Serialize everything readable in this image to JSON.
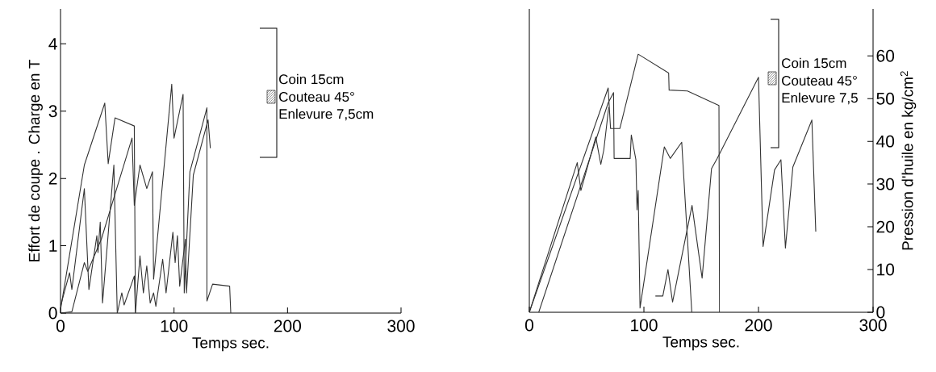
{
  "chart_data": [
    {
      "type": "line",
      "xlabel": "Temps sec.",
      "ylabel": "Effort de coupe . Charge en T",
      "xlim": [
        0,
        300
      ],
      "ylim": [
        0,
        4.52
      ],
      "xticks": [
        0,
        100,
        200,
        300
      ],
      "yticks": [
        0,
        1,
        2,
        3,
        4
      ],
      "annotations": [
        "Coin 15cm",
        "Couteau 45°",
        "Enlevure 7,5cm"
      ],
      "series": [
        {
          "color": "#333333",
          "x": [
            0,
            21,
            39,
            42,
            48,
            65,
            66
          ],
          "values": [
            0.05,
            2.2,
            3.12,
            2.22,
            2.9,
            2.78,
            0
          ]
        },
        {
          "color": "#333333",
          "x": [
            0,
            8,
            10,
            21,
            25,
            32,
            33,
            35,
            37,
            47,
            50
          ],
          "values": [
            0.1,
            0.6,
            0.35,
            1.85,
            0.35,
            1.15,
            0.9,
            1.35,
            0.15,
            2.2,
            0
          ]
        },
        {
          "color": "#333333",
          "x": [
            0,
            10,
            21,
            24,
            36,
            63,
            65,
            70,
            76,
            81,
            82
          ],
          "values": [
            0,
            0.02,
            0.75,
            0.62,
            1.1,
            2.6,
            1.6,
            2.2,
            1.85,
            2.1,
            0.5
          ]
        },
        {
          "color": "#333333",
          "x": [
            50,
            54,
            56,
            65,
            66,
            70,
            73,
            76,
            79,
            82,
            84,
            90,
            93,
            99,
            101,
            103,
            105,
            110,
            111,
            117,
            130,
            132
          ],
          "values": [
            0,
            0.3,
            0.12,
            0.55,
            0,
            0.85,
            0.3,
            0.7,
            0.15,
            0.3,
            0.1,
            0.8,
            0.3,
            1.2,
            0.75,
            1.15,
            0.4,
            1.1,
            0.3,
            2.05,
            2.87,
            2.45
          ]
        },
        {
          "color": "#333333",
          "x": [
            82,
            98,
            100,
            108,
            109,
            114,
            129,
            129,
            134,
            149,
            150
          ],
          "values": [
            0.5,
            3.4,
            2.6,
            3.25,
            0.3,
            2.1,
            3.05,
            0.18,
            0.43,
            0.4,
            0
          ]
        }
      ]
    },
    {
      "type": "line",
      "xlabel": "Temps sec.",
      "y2label": "Pression d'huile en kg/cm$^{2}$",
      "xlim": [
        0,
        300
      ],
      "y2lim": [
        0,
        71
      ],
      "xticks": [
        0,
        100,
        200,
        300
      ],
      "y2ticks": [
        0,
        10,
        20,
        30,
        40,
        50,
        60
      ],
      "annotations": [
        "Coin 15cm",
        "Couteau 45°",
        "Enlevure 7,5"
      ],
      "series": [
        {
          "color": "#333333",
          "axis": "y2",
          "x": [
            0,
            68.8,
            70.9,
            79,
            95,
            121.6,
            122,
            138,
            165.5,
            166
          ],
          "values": [
            0,
            52.5,
            43,
            43,
            60.4,
            56,
            52,
            51.8,
            48.4,
            0
          ]
        },
        {
          "color": "#333333",
          "axis": "y2",
          "x": [
            8.2,
            68.8,
            73.5,
            74,
            88,
            89,
            93,
            94,
            95,
            96.6,
            117.8,
            123,
            133,
            141.8
          ],
          "values": [
            0,
            49,
            51.4,
            36,
            36,
            41.5,
            35.7,
            24,
            28.5,
            1,
            38.7,
            36,
            39.8,
            0
          ]
        },
        {
          "color": "#333333",
          "axis": "y2",
          "x": [
            0,
            41.8,
            45,
            58,
            62.4,
            65,
            69.3
          ],
          "values": [
            0,
            35,
            28.5,
            41,
            34.6,
            38,
            48
          ]
        },
        {
          "color": "#333333",
          "axis": "y2",
          "x": [
            110,
            116.5,
            121,
            125,
            142,
            150.8,
            159,
            164,
            200,
            204,
            214,
            219.6,
            223.5,
            230,
            246.6,
            250
          ],
          "values": [
            3.8,
            3.8,
            10,
            2.4,
            25,
            8,
            33.6,
            36,
            55,
            15.4,
            33.3,
            35.7,
            15,
            34,
            45,
            18.9
          ]
        }
      ]
    }
  ]
}
